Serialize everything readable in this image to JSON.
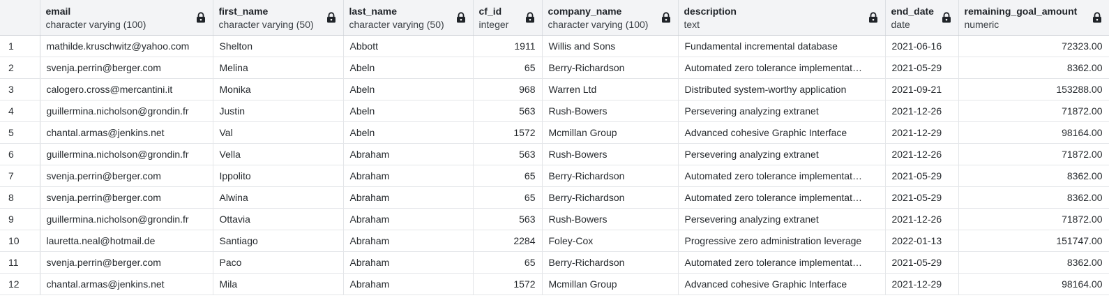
{
  "columns": [
    {
      "key": "email",
      "name": "email",
      "type": "character varying (100)",
      "align": "left"
    },
    {
      "key": "first_name",
      "name": "first_name",
      "type": "character varying (50)",
      "align": "left"
    },
    {
      "key": "last_name",
      "name": "last_name",
      "type": "character varying (50)",
      "align": "left"
    },
    {
      "key": "cf_id",
      "name": "cf_id",
      "type": "integer",
      "align": "right"
    },
    {
      "key": "company_name",
      "name": "company_name",
      "type": "character varying (100)",
      "align": "left"
    },
    {
      "key": "description",
      "name": "description",
      "type": "text",
      "align": "left"
    },
    {
      "key": "end_date",
      "name": "end_date",
      "type": "date",
      "align": "left"
    },
    {
      "key": "remaining_goal_amount",
      "name": "remaining_goal_amount",
      "type": "numeric",
      "align": "right"
    }
  ],
  "lock_icon": "lock-icon",
  "colors": {
    "header_bg": "#f3f4f6",
    "grid_line": "#e4e6e9",
    "lock": "#1f2328"
  },
  "rows": [
    {
      "num": "1",
      "cells": [
        "mathilde.kruschwitz@yahoo.com",
        "Shelton",
        "Abbott",
        "1911",
        "Willis and Sons",
        "Fundamental incremental database",
        "2021-06-16",
        "72323.00"
      ]
    },
    {
      "num": "2",
      "cells": [
        "svenja.perrin@berger.com",
        "Melina",
        "Abeln",
        "65",
        "Berry-Richardson",
        "Automated zero tolerance implementat…",
        "2021-05-29",
        "8362.00"
      ]
    },
    {
      "num": "3",
      "cells": [
        "calogero.cross@mercantini.it",
        "Monika",
        "Abeln",
        "968",
        "Warren Ltd",
        "Distributed system-worthy application",
        "2021-09-21",
        "153288.00"
      ]
    },
    {
      "num": "4",
      "cells": [
        "guillermina.nicholson@grondin.fr",
        "Justin",
        "Abeln",
        "563",
        "Rush-Bowers",
        "Persevering analyzing extranet",
        "2021-12-26",
        "71872.00"
      ]
    },
    {
      "num": "5",
      "cells": [
        "chantal.armas@jenkins.net",
        "Val",
        "Abeln",
        "1572",
        "Mcmillan Group",
        "Advanced cohesive Graphic Interface",
        "2021-12-29",
        "98164.00"
      ]
    },
    {
      "num": "6",
      "cells": [
        "guillermina.nicholson@grondin.fr",
        "Vella",
        "Abraham",
        "563",
        "Rush-Bowers",
        "Persevering analyzing extranet",
        "2021-12-26",
        "71872.00"
      ]
    },
    {
      "num": "7",
      "cells": [
        "svenja.perrin@berger.com",
        "Ippolito",
        "Abraham",
        "65",
        "Berry-Richardson",
        "Automated zero tolerance implementat…",
        "2021-05-29",
        "8362.00"
      ]
    },
    {
      "num": "8",
      "cells": [
        "svenja.perrin@berger.com",
        "Alwina",
        "Abraham",
        "65",
        "Berry-Richardson",
        "Automated zero tolerance implementat…",
        "2021-05-29",
        "8362.00"
      ]
    },
    {
      "num": "9",
      "cells": [
        "guillermina.nicholson@grondin.fr",
        "Ottavia",
        "Abraham",
        "563",
        "Rush-Bowers",
        "Persevering analyzing extranet",
        "2021-12-26",
        "71872.00"
      ]
    },
    {
      "num": "10",
      "cells": [
        "lauretta.neal@hotmail.de",
        "Santiago",
        "Abraham",
        "2284",
        "Foley-Cox",
        "Progressive zero administration leverage",
        "2022-01-13",
        "151747.00"
      ]
    },
    {
      "num": "11",
      "cells": [
        "svenja.perrin@berger.com",
        "Paco",
        "Abraham",
        "65",
        "Berry-Richardson",
        "Automated zero tolerance implementat…",
        "2021-05-29",
        "8362.00"
      ]
    },
    {
      "num": "12",
      "cells": [
        "chantal.armas@jenkins.net",
        "Mila",
        "Abraham",
        "1572",
        "Mcmillan Group",
        "Advanced cohesive Graphic Interface",
        "2021-12-29",
        "98164.00"
      ]
    }
  ]
}
